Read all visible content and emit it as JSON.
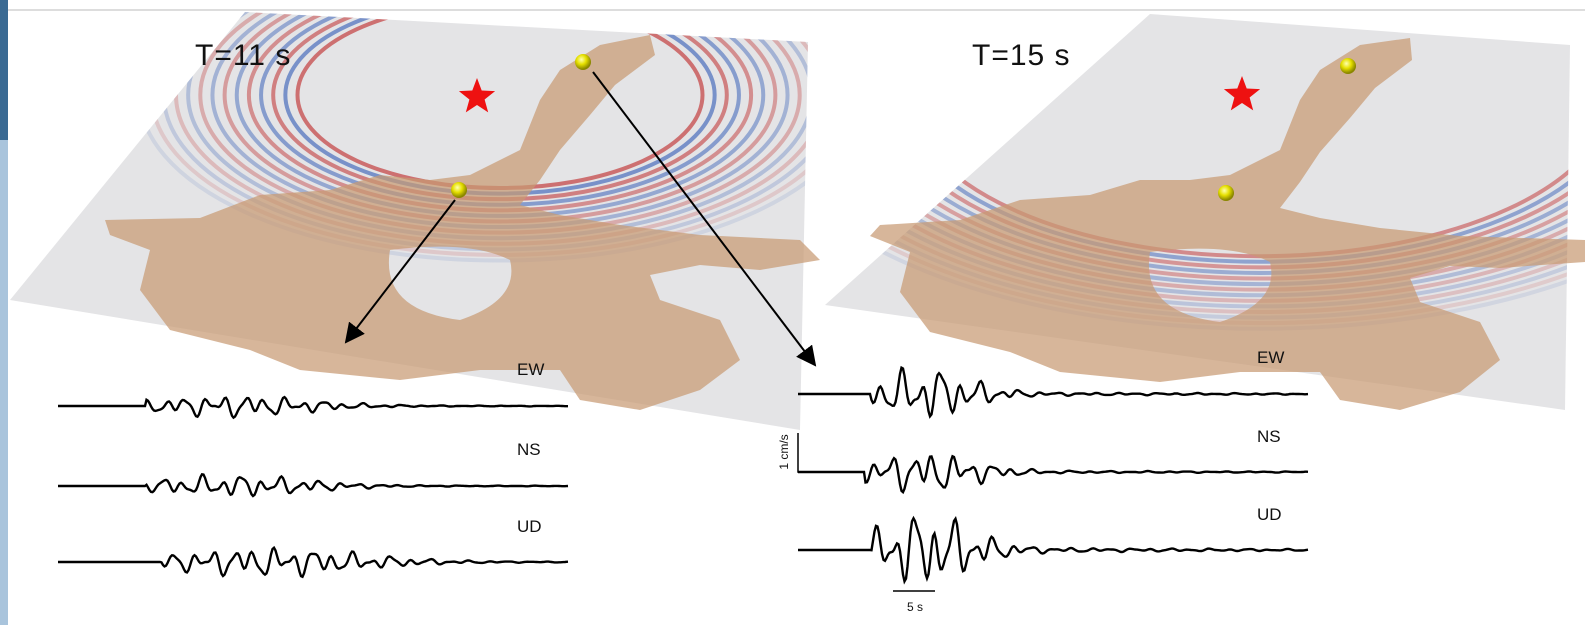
{
  "panels": [
    {
      "time_label": "T=11 s",
      "components": [
        "EW",
        "NS",
        "UD"
      ]
    },
    {
      "time_label": "T=15 s",
      "components": [
        "EW",
        "NS",
        "UD"
      ]
    }
  ],
  "scale_bars": {
    "amplitude": "1 cm/s",
    "time": "5 s"
  }
}
